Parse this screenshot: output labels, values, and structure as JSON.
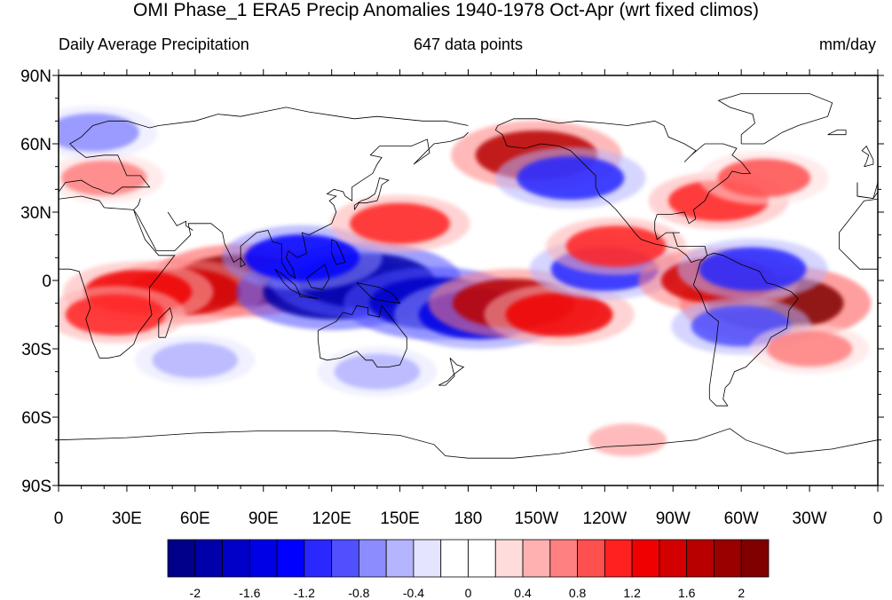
{
  "header": {
    "title": "OMI Phase_1 ERA5 Precip Anomalies 1940-1978 Oct-Apr (wrt fixed climos)",
    "left_string": "Daily Average Precipitation",
    "center_string": "647 data points",
    "right_string": "mm/day"
  },
  "map": {
    "projection": "cylindrical equidistant",
    "lon_range": [
      0,
      360
    ],
    "lat_range": [
      -90,
      90
    ],
    "lat_labels": [
      "90N",
      "60N",
      "30N",
      "0",
      "30S",
      "60S",
      "90S"
    ],
    "lon_labels": [
      "0",
      "30E",
      "60E",
      "90E",
      "120E",
      "150E",
      "180",
      "150W",
      "120W",
      "90W",
      "60W",
      "30W",
      "0"
    ]
  },
  "colorbar": {
    "colors": [
      "#00008b",
      "#0000aa",
      "#0000c8",
      "#0000e6",
      "#0000ff",
      "#2828ff",
      "#5050ff",
      "#8c8cff",
      "#b4b4ff",
      "#e4e4ff",
      "#ffffff",
      "#ffffff",
      "#ffdcdc",
      "#ffb0b0",
      "#ff8080",
      "#ff5050",
      "#ff2020",
      "#f00000",
      "#d40000",
      "#b80000",
      "#9a0000",
      "#800000"
    ],
    "labels": [
      "-2",
      "-1.6",
      "-1.2",
      "-0.8",
      "-0.4",
      "0",
      "0.4",
      "0.8",
      "1.2",
      "1.6",
      "2"
    ]
  },
  "anomalies": [
    {
      "lon": 80,
      "lat": 0,
      "value": 1.8
    },
    {
      "lon": 55,
      "lat": -5,
      "value": 1.4
    },
    {
      "lon": 35,
      "lat": -5,
      "value": 1.2
    },
    {
      "lon": 25,
      "lat": -15,
      "value": 1.0
    },
    {
      "lon": 120,
      "lat": -5,
      "value": -2.0
    },
    {
      "lon": 135,
      "lat": 0,
      "value": -2.0
    },
    {
      "lon": 165,
      "lat": -10,
      "value": -1.8
    },
    {
      "lon": 185,
      "lat": -15,
      "value": -1.6
    },
    {
      "lon": 107,
      "lat": 10,
      "value": -1.4
    },
    {
      "lon": 200,
      "lat": -10,
      "value": 1.6
    },
    {
      "lon": 220,
      "lat": -15,
      "value": 1.2
    },
    {
      "lon": 240,
      "lat": 5,
      "value": -1.2
    },
    {
      "lon": 245,
      "lat": 15,
      "value": 1.0
    },
    {
      "lon": 315,
      "lat": -10,
      "value": 2.0
    },
    {
      "lon": 290,
      "lat": 0,
      "value": 1.4
    },
    {
      "lon": 300,
      "lat": -20,
      "value": -1.0
    },
    {
      "lon": 305,
      "lat": 5,
      "value": -1.2
    },
    {
      "lon": 150,
      "lat": 25,
      "value": 1.0
    },
    {
      "lon": 210,
      "lat": 55,
      "value": 1.6
    },
    {
      "lon": 225,
      "lat": 45,
      "value": -1.2
    },
    {
      "lon": 290,
      "lat": 35,
      "value": 1.0
    },
    {
      "lon": 310,
      "lat": 45,
      "value": 0.8
    },
    {
      "lon": 20,
      "lat": 45,
      "value": 0.6
    },
    {
      "lon": 15,
      "lat": 65,
      "value": -0.8
    },
    {
      "lon": 140,
      "lat": -40,
      "value": -0.6
    },
    {
      "lon": 330,
      "lat": -30,
      "value": 0.6
    },
    {
      "lon": 60,
      "lat": -35,
      "value": -0.6
    },
    {
      "lon": 250,
      "lat": -70,
      "value": 0.4
    }
  ]
}
